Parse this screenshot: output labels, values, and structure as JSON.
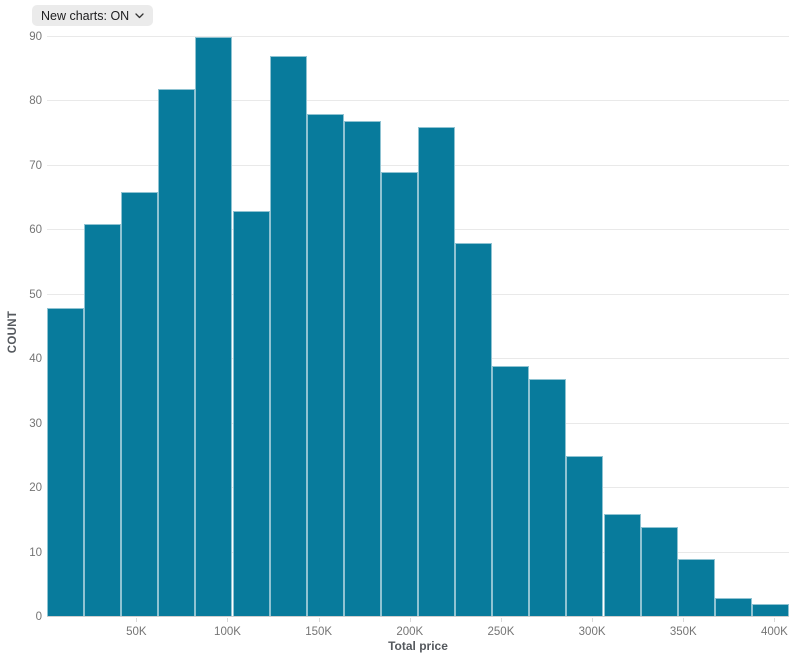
{
  "controls": {
    "new_charts_toggle": {
      "label": "New charts: ON",
      "state": "ON"
    }
  },
  "chart_data": {
    "type": "bar",
    "subtype": "histogram",
    "title": "",
    "xlabel": "Total price",
    "ylabel": "COUNT",
    "ylim": [
      0,
      90
    ],
    "yticks": [
      0,
      10,
      20,
      30,
      40,
      50,
      60,
      70,
      80,
      90
    ],
    "x_domain": [
      1000,
      408000
    ],
    "xticks": [
      {
        "value": 50000,
        "label": "50K"
      },
      {
        "value": 100000,
        "label": "100K"
      },
      {
        "value": 150000,
        "label": "150K"
      },
      {
        "value": 200000,
        "label": "200K"
      },
      {
        "value": 250000,
        "label": "250K"
      },
      {
        "value": 300000,
        "label": "300K"
      },
      {
        "value": 350000,
        "label": "350K"
      },
      {
        "value": 400000,
        "label": "400K"
      }
    ],
    "values": [
      48,
      61,
      66,
      82,
      90,
      63,
      87,
      78,
      77,
      69,
      76,
      58,
      39,
      37,
      25,
      16,
      14,
      9,
      3,
      2
    ],
    "grid": true,
    "legend": "none",
    "colors": {
      "bar_fill": "#087b9c",
      "bar_border": "rgba(255,255,255,0.55)",
      "gridline": "#e9e9e9",
      "axis_line": "#cfcfcf",
      "tick_text": "#757575",
      "tick_mark": "#d9d9d9",
      "axis_title_text": "#55595e",
      "control_bg": "#ebebeb",
      "control_text": "#1d1d1f"
    }
  }
}
